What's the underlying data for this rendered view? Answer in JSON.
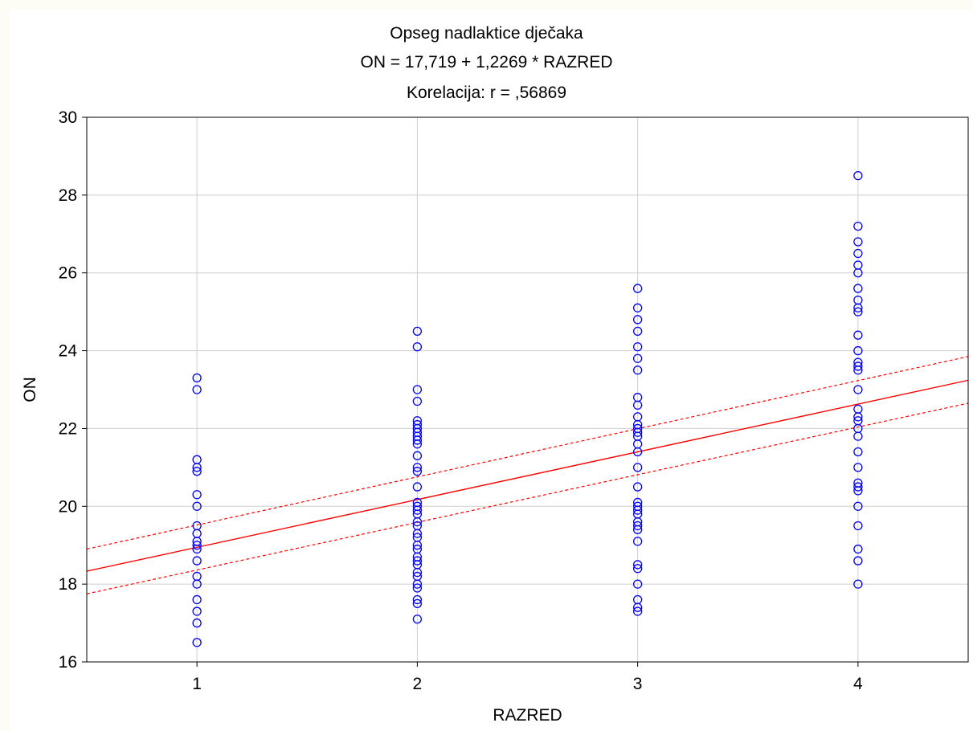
{
  "chart_data": {
    "type": "scatter",
    "title": "Opseg nadlaktice dječaka",
    "subtitle": "ON = 17,719 + 1,2269 * RAZRED",
    "subtitle2": "Korelacija: r = ,56869",
    "xlabel": "RAZRED",
    "ylabel": "ON",
    "xlim": [
      0.5,
      4.5
    ],
    "ylim": [
      16,
      30
    ],
    "xticks": [
      "1",
      "2",
      "3",
      "4"
    ],
    "yticks": [
      "16",
      "18",
      "20",
      "22",
      "24",
      "26",
      "28",
      "30"
    ],
    "grid": true,
    "regression": {
      "intercept": 17.719,
      "slope": 1.2269
    },
    "confidence_band": {
      "at_x_min": [
        17.75,
        18.9
      ],
      "at_x_max": [
        22.65,
        23.85
      ]
    },
    "series": [
      {
        "color": "#0000ff",
        "line_color": "#ff0000",
        "x": 1,
        "values": [
          23.3,
          23.0,
          21.2,
          21.0,
          20.9,
          20.3,
          20.0,
          19.5,
          19.3,
          19.1,
          19.0,
          18.9,
          18.6,
          18.2,
          18.0,
          17.6,
          17.3,
          17.0,
          16.5
        ]
      },
      {
        "color": "#0000ff",
        "line_color": "#ff0000",
        "x": 2,
        "values": [
          24.5,
          24.1,
          23.0,
          22.7,
          22.2,
          22.1,
          22.0,
          21.9,
          21.8,
          21.7,
          21.6,
          21.3,
          21.0,
          20.9,
          20.5,
          20.1,
          20.0,
          19.9,
          19.8,
          19.6,
          19.5,
          19.3,
          19.2,
          19.0,
          18.9,
          18.7,
          18.6,
          18.5,
          18.3,
          18.2,
          18.0,
          17.9,
          17.6,
          17.5,
          17.1
        ]
      },
      {
        "color": "#0000ff",
        "line_color": "#ff0000",
        "x": 3,
        "values": [
          25.6,
          25.1,
          24.8,
          24.5,
          24.1,
          23.8,
          23.5,
          22.8,
          22.6,
          22.3,
          22.1,
          22.0,
          21.9,
          21.8,
          21.6,
          21.4,
          21.0,
          20.5,
          20.1,
          20.0,
          19.9,
          19.8,
          19.6,
          19.5,
          19.4,
          19.1,
          18.5,
          18.4,
          18.0,
          17.6,
          17.4,
          17.3
        ]
      },
      {
        "color": "#0000ff",
        "line_color": "#ff0000",
        "x": 4,
        "values": [
          28.5,
          27.2,
          26.8,
          26.5,
          26.2,
          26.0,
          25.6,
          25.3,
          25.1,
          25.0,
          24.4,
          24.0,
          23.7,
          23.6,
          23.5,
          23.0,
          22.5,
          22.3,
          22.2,
          22.0,
          21.8,
          21.4,
          21.0,
          20.6,
          20.5,
          20.4,
          20.0,
          19.5,
          18.9,
          18.6,
          18.0
        ]
      }
    ]
  }
}
